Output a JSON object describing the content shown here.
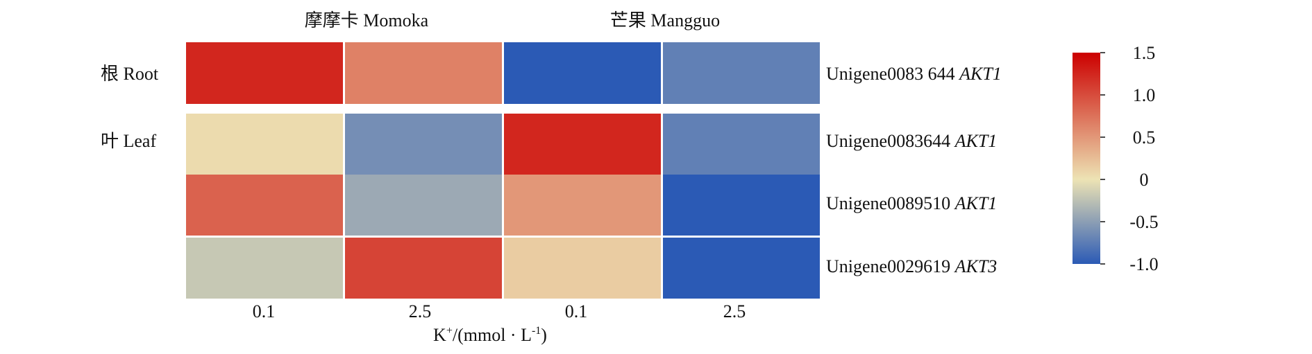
{
  "chart_data": {
    "type": "heatmap",
    "column_groups": [
      "摩摩卡 Momoka",
      "芒果 Mangguo"
    ],
    "x_ticks": [
      "0.1",
      "2.5",
      "0.1",
      "2.5"
    ],
    "xlabel_main": "K",
    "xlabel_sup": "+",
    "xlabel_mid": "/(mmol · L",
    "xlabel_sup2": "-1",
    "xlabel_end": ")",
    "row_groups": [
      "根 Root",
      "叶 Leaf"
    ],
    "rows": [
      {
        "group": "根 Root",
        "gene_id": "Unigene0083 644",
        "gene": "AKT1",
        "values": [
          1.25,
          0.65,
          -1.0,
          -0.72
        ]
      },
      {
        "group": "叶 Leaf",
        "gene_id": "Unigene0083644",
        "gene": "AKT1",
        "values": [
          0.05,
          -0.62,
          1.25,
          -0.72
        ]
      },
      {
        "group": "叶 Leaf",
        "gene_id": "Unigene0089510",
        "gene": "AKT1",
        "values": [
          0.85,
          -0.42,
          0.5,
          -1.0
        ]
      },
      {
        "group": "叶 Leaf",
        "gene_id": "Unigene0029619",
        "gene": "AKT3",
        "values": [
          -0.2,
          1.05,
          0.15,
          -1.0
        ]
      }
    ],
    "colorbar": {
      "min": -1.0,
      "max": 1.5,
      "ticks": [
        "1.5",
        "1.0",
        "0.5",
        "0",
        "-0.5",
        "-1.0"
      ],
      "colors": [
        "#2B5AB5",
        "#EDE3B4",
        "#CC0000"
      ]
    }
  }
}
